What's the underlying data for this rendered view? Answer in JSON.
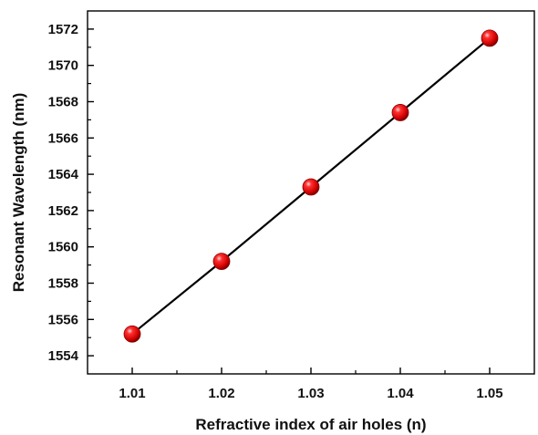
{
  "chart_data": {
    "type": "line",
    "xlabel": "Refractive index of air holes (n)",
    "ylabel": "Resonant Wavelength (nm)",
    "xlim": [
      1.005,
      1.055
    ],
    "ylim": [
      1553,
      1573
    ],
    "x_ticks": [
      1.01,
      1.02,
      1.03,
      1.04,
      1.05
    ],
    "x_tick_labels": [
      "1.01",
      "1.02",
      "1.03",
      "1.04",
      "1.05"
    ],
    "y_ticks": [
      1554,
      1556,
      1558,
      1560,
      1562,
      1564,
      1566,
      1568,
      1570,
      1572
    ],
    "y_tick_labels": [
      "1554",
      "1556",
      "1558",
      "1560",
      "1562",
      "1564",
      "1566",
      "1568",
      "1570",
      "1572"
    ],
    "grid": false,
    "legend": "none",
    "series": [
      {
        "x": [
          1.01,
          1.02,
          1.03,
          1.04,
          1.05
        ],
        "y": [
          1555.2,
          1559.2,
          1563.3,
          1567.4,
          1571.5
        ],
        "line_color": "#000000",
        "marker_color": "#e0000a"
      }
    ]
  }
}
